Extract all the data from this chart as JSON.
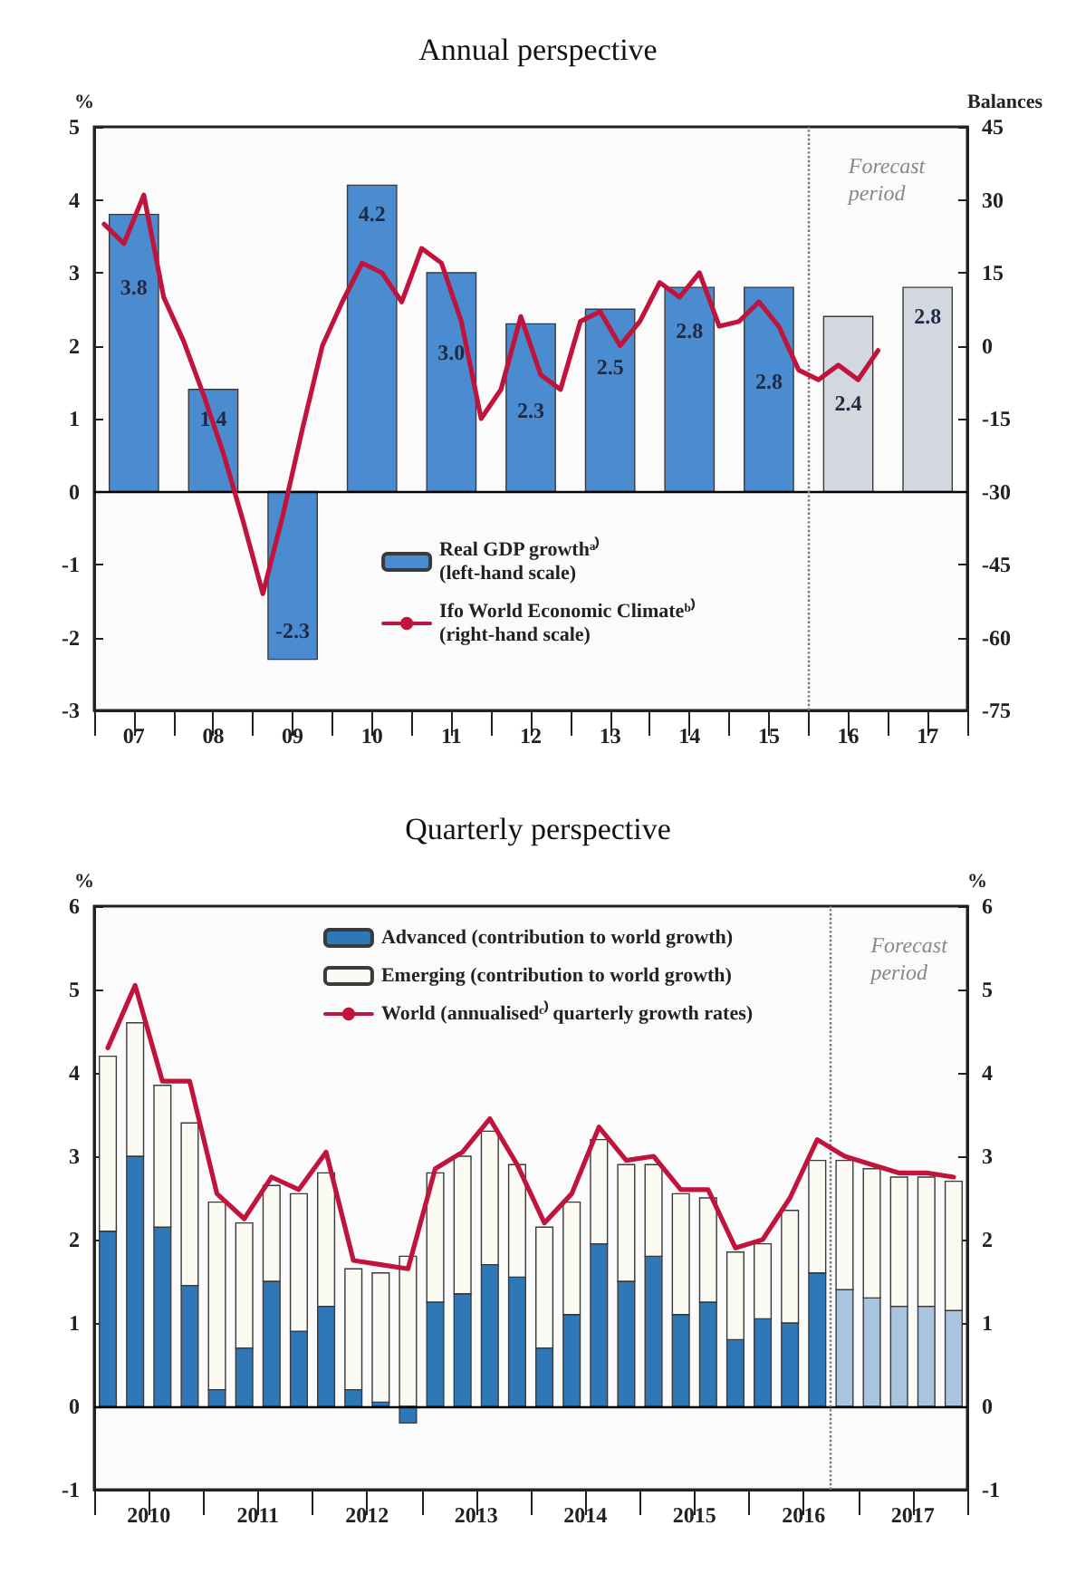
{
  "chart_data": [
    {
      "type": "bar",
      "title": "Annual perspective",
      "ylabel": "%",
      "y2label": "Balances",
      "x": [
        7,
        8,
        9,
        10,
        11,
        12,
        13,
        14,
        15,
        16,
        17
      ],
      "series": [
        {
          "name": "Real GDP growthᵃ⁾\n(left-hand scale)",
          "color": "#4a8ccf",
          "colors": [
            "#4a8ccf",
            "#4a8ccf",
            "#4a8ccf",
            "#4a8ccf",
            "#4a8ccf",
            "#4a8ccf",
            "#4a8ccf",
            "#4a8ccf",
            "#4a8ccf",
            "#d3d8e0",
            "#d3d8e0"
          ],
          "values": [
            3.8,
            1.4,
            -2.3,
            4.2,
            3.0,
            2.3,
            2.5,
            2.8,
            2.8,
            2.4,
            2.8
          ],
          "value_labels": [
            "3.8",
            "1.4",
            "-2.3",
            "4.2",
            "3.0",
            "2.3",
            "2.5",
            "2.8",
            "2.8",
            "2.4",
            "2.8"
          ]
        },
        {
          "name": "Ifo World Economic Climateᵇ⁾\n(right-hand scale)",
          "type": "line",
          "axis": "y2",
          "color": "#c0143c",
          "x": [
            6.625,
            6.875,
            7.125,
            7.375,
            7.625,
            7.875,
            8.125,
            8.375,
            8.625,
            8.875,
            9.125,
            9.375,
            9.625,
            9.875,
            10.125,
            10.375,
            10.625,
            10.875,
            11.125,
            11.375,
            11.625,
            11.875,
            12.125,
            12.375,
            12.625,
            12.875,
            13.125,
            13.375,
            13.625,
            13.875,
            14.125,
            14.375,
            14.625,
            14.875,
            15.125,
            15.375,
            15.625,
            15.875,
            16.125,
            16.375
          ],
          "values": [
            25,
            21,
            31,
            10,
            1,
            -10,
            -22,
            -36,
            -51,
            -35,
            -17,
            0,
            9,
            17,
            15,
            9,
            20,
            17,
            5,
            -15,
            -9,
            6,
            -6,
            -9,
            5,
            7,
            0,
            5,
            13,
            10,
            15,
            4,
            5,
            9,
            4,
            -5,
            -7,
            -4,
            -7,
            -1
          ]
        }
      ],
      "xlim": [
        6.5,
        17.5
      ],
      "xticks": [
        {
          "value": 6.5,
          "label": null
        },
        {
          "value": 7,
          "label": "07"
        },
        {
          "value": 7.5,
          "label": null
        },
        {
          "value": 8,
          "label": "08"
        },
        {
          "value": 8.5,
          "label": null
        },
        {
          "value": 9,
          "label": "09"
        },
        {
          "value": 9.5,
          "label": null
        },
        {
          "value": 10,
          "label": "10"
        },
        {
          "value": 10.5,
          "label": null
        },
        {
          "value": 11,
          "label": "11"
        },
        {
          "value": 11.5,
          "label": null
        },
        {
          "value": 12,
          "label": "12"
        },
        {
          "value": 12.5,
          "label": null
        },
        {
          "value": 13,
          "label": "13"
        },
        {
          "value": 13.5,
          "label": null
        },
        {
          "value": 14,
          "label": "14"
        },
        {
          "value": 14.5,
          "label": null
        },
        {
          "value": 15,
          "label": "15"
        },
        {
          "value": 15.5,
          "label": null
        },
        {
          "value": 16,
          "label": "16"
        },
        {
          "value": 16.5,
          "label": null
        },
        {
          "value": 17,
          "label": "17"
        },
        {
          "value": 17.5,
          "label": null
        }
      ],
      "ylim": [
        -3,
        5
      ],
      "yticks": [
        -3,
        -2,
        -1,
        0,
        1,
        2,
        3,
        4,
        5
      ],
      "y2lim": [
        -75,
        45
      ],
      "y2ticks": [
        -75,
        -60,
        -45,
        -30,
        -15,
        0,
        15,
        30,
        45
      ],
      "ref_lines": [
        {
          "axis": "y",
          "value": 0,
          "color": "#000000",
          "line_style": "solid"
        },
        {
          "axis": "x",
          "value": 15.5,
          "label": "Forecast\nperiod",
          "color": "#777777",
          "line_style": "dotted"
        }
      ],
      "legend": "bottom",
      "grid": false
    },
    {
      "type": "bar",
      "title": "Quarterly perspective",
      "ylabel": "%",
      "y2label": "%",
      "stacked": true,
      "x": [
        2010.125,
        2010.375,
        2010.625,
        2010.875,
        2011.125,
        2011.375,
        2011.625,
        2011.875,
        2012.125,
        2012.375,
        2012.625,
        2012.875,
        2013.125,
        2013.375,
        2013.625,
        2013.875,
        2014.125,
        2014.375,
        2014.625,
        2014.875,
        2015.125,
        2015.375,
        2015.625,
        2015.875,
        2016.125,
        2016.375,
        2016.625,
        2016.875,
        2017.125,
        2017.375,
        2017.625,
        2017.875
      ],
      "series": [
        {
          "name": "Advanced (contribution to world growth)",
          "color": "#2f78b8",
          "colors": [
            "#2f78b8",
            "#2f78b8",
            "#2f78b8",
            "#2f78b8",
            "#2f78b8",
            "#2f78b8",
            "#2f78b8",
            "#2f78b8",
            "#2f78b8",
            "#2f78b8",
            "#2f78b8",
            "#2f78b8",
            "#2f78b8",
            "#2f78b8",
            "#2f78b8",
            "#2f78b8",
            "#2f78b8",
            "#2f78b8",
            "#2f78b8",
            "#2f78b8",
            "#2f78b8",
            "#2f78b8",
            "#2f78b8",
            "#2f78b8",
            "#2f78b8",
            "#2f78b8",
            "#2f78b8",
            "#a9c4de",
            "#a9c4de",
            "#a9c4de",
            "#a9c4de",
            "#a9c4de"
          ],
          "values": [
            2.1,
            3.0,
            2.15,
            1.45,
            0.2,
            0.7,
            1.5,
            0.9,
            1.2,
            0.2,
            0.05,
            -0.2,
            1.25,
            1.35,
            1.7,
            1.55,
            0.7,
            1.1,
            1.95,
            1.5,
            1.8,
            1.1,
            1.25,
            0.8,
            1.05,
            1.0,
            1.6,
            1.4,
            1.3,
            1.2,
            1.2,
            1.15
          ]
        },
        {
          "name": "Emerging (contribution to world growth)",
          "color": "#fbfbf3",
          "values": [
            2.1,
            1.6,
            1.7,
            1.95,
            2.25,
            1.5,
            1.15,
            1.65,
            1.6,
            1.45,
            1.55,
            1.8,
            1.55,
            1.65,
            1.6,
            1.35,
            1.45,
            1.35,
            1.25,
            1.4,
            1.1,
            1.45,
            1.25,
            1.05,
            0.9,
            1.35,
            1.35,
            1.55,
            1.55,
            1.55,
            1.55,
            1.55
          ]
        },
        {
          "name": "World (annualisedᶜ⁾ quarterly growth rates)",
          "type": "line",
          "color": "#c0143c",
          "values": [
            4.3,
            5.05,
            3.9,
            3.9,
            2.55,
            2.25,
            2.75,
            2.6,
            3.05,
            1.75,
            1.7,
            1.65,
            2.85,
            3.05,
            3.45,
            2.9,
            2.2,
            2.55,
            3.35,
            2.95,
            3.0,
            2.6,
            2.6,
            1.9,
            2.0,
            2.5,
            3.2,
            3.0,
            2.9,
            2.8,
            2.8,
            2.75
          ]
        }
      ],
      "xlim": [
        2010,
        2018
      ],
      "xticks": [
        {
          "value": 2010,
          "label": null
        },
        {
          "value": 2010.5,
          "label": "2010"
        },
        {
          "value": 2011,
          "label": null
        },
        {
          "value": 2011.5,
          "label": "2011"
        },
        {
          "value": 2012,
          "label": null
        },
        {
          "value": 2012.5,
          "label": "2012"
        },
        {
          "value": 2013,
          "label": null
        },
        {
          "value": 2013.5,
          "label": "2013"
        },
        {
          "value": 2014,
          "label": null
        },
        {
          "value": 2014.5,
          "label": "2014"
        },
        {
          "value": 2015,
          "label": null
        },
        {
          "value": 2015.5,
          "label": "2015"
        },
        {
          "value": 2016,
          "label": null
        },
        {
          "value": 2016.5,
          "label": "2016"
        },
        {
          "value": 2017,
          "label": null
        },
        {
          "value": 2017.5,
          "label": "2017"
        },
        {
          "value": 2018,
          "label": null
        }
      ],
      "ylim": [
        -1,
        6
      ],
      "yticks": [
        -1,
        0,
        1,
        2,
        3,
        4,
        5,
        6
      ],
      "y2lim": [
        -1,
        6
      ],
      "y2ticks": [
        -1,
        0,
        1,
        2,
        3,
        4,
        5,
        6
      ],
      "ref_lines": [
        {
          "axis": "y",
          "value": 0,
          "color": "#000000",
          "line_style": "solid"
        },
        {
          "axis": "x",
          "value": 2016.75,
          "label": "Forecast\nperiod",
          "color": "#777777",
          "line_style": "dotted"
        }
      ],
      "legend": "top",
      "grid": false
    }
  ]
}
